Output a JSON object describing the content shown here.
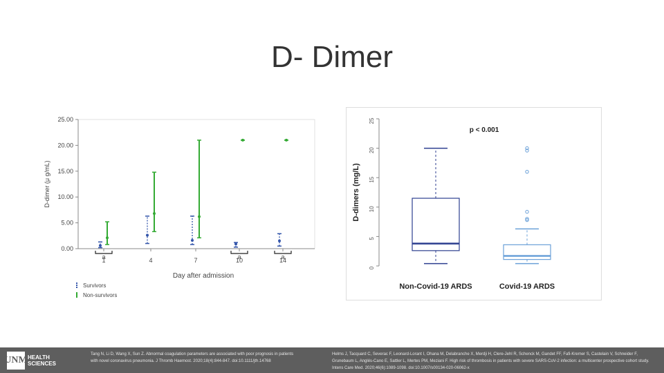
{
  "slide": {
    "title": "D- Dimer"
  },
  "footer": {
    "logo_mark": "UNM",
    "logo_line1": "HEALTH",
    "logo_line2": "SCIENCES",
    "ref_left": "Tang N, Li D, Wang X, Sun Z. Abnormal coagulation parameters are associated with poor prognosis in patients with novel coronavirus pneumonia. J Thromb Haemost. 2020;18(4):844-847. doi:10.1111/jth.14768",
    "ref_right": "Helms J, Tacquard C, Severac F, Leonard-Lorant I, Ohana M, Delabranche X, Merdji H, Clere-Jehl R, Schenck M, Gandet FF, Fafi-Kremer S, Castelain V, Schneider F, Grunebaum L, Anglés-Cano E, Sattler L, Mertes PM, Meziani F. High risk of thrombosis in patients with severe SARS-CoV-2 infection: a multicenter prospective cohort study. Intens Care Med. 2020;46(6):1089-1098. doi:10.1007/s00134-020-06062-x"
  },
  "chart_data": [
    {
      "type": "error-bar",
      "title": "",
      "xlabel": "Day after admission",
      "ylabel": "D-dimer (μ g/mL)",
      "xticks": [
        "1",
        "4",
        "7",
        "10",
        "14"
      ],
      "ylim": [
        0,
        25
      ],
      "yticks": [
        "0.00",
        "5.00",
        "10.00",
        "15.00",
        "20.00",
        "25.00"
      ],
      "legend_position": "bottom-left",
      "significance_marks": [
        {
          "day": "1",
          "label": "a"
        },
        {
          "day": "10",
          "label": "a"
        },
        {
          "day": "14",
          "label": "a"
        }
      ],
      "series": [
        {
          "name": "Survivors",
          "color": "#3355aa",
          "style": "dotted",
          "points": [
            {
              "day": "1",
              "median": 0.6,
              "low": 0.2,
              "high": 1.3
            },
            {
              "day": "4",
              "median": 2.6,
              "low": 1.0,
              "high": 6.3
            },
            {
              "day": "7",
              "median": 1.6,
              "low": 0.8,
              "high": 6.3
            },
            {
              "day": "10",
              "median": 0.9,
              "low": 0.3,
              "high": 1.2
            },
            {
              "day": "14",
              "median": 1.5,
              "low": 0.5,
              "high": 2.9
            }
          ]
        },
        {
          "name": "Non-survivors",
          "color": "#33aa33",
          "style": "solid",
          "points": [
            {
              "day": "1",
              "median": 2.1,
              "low": 0.8,
              "high": 5.2
            },
            {
              "day": "4",
              "median": 6.8,
              "low": 3.3,
              "high": 14.8
            },
            {
              "day": "7",
              "median": 6.2,
              "low": 2.1,
              "high": 21.0
            },
            {
              "day": "10",
              "median": 21.0,
              "low": 21.0,
              "high": 21.0
            },
            {
              "day": "14",
              "median": 21.0,
              "low": 21.0,
              "high": 21.0
            }
          ]
        }
      ]
    },
    {
      "type": "boxplot",
      "title": "",
      "annotation": "p < 0.001",
      "xlabel": "",
      "ylabel": "D-dimers (mg/L)",
      "ylim": [
        0,
        25
      ],
      "yticks": [
        "0",
        "5",
        "10",
        "15",
        "20",
        "25"
      ],
      "groups": [
        {
          "name": "Non-Covid-19 ARDS",
          "min": 0.4,
          "q1": 2.6,
          "median": 3.8,
          "q3": 11.5,
          "max": 20.0,
          "outliers": []
        },
        {
          "name": "Covid-19 ARDS",
          "min": 0.4,
          "q1": 1.1,
          "median": 1.7,
          "q3": 3.6,
          "max": 6.3,
          "outliers": [
            7.8,
            8.0,
            9.2,
            16.0,
            19.6,
            20.0
          ]
        }
      ]
    }
  ]
}
